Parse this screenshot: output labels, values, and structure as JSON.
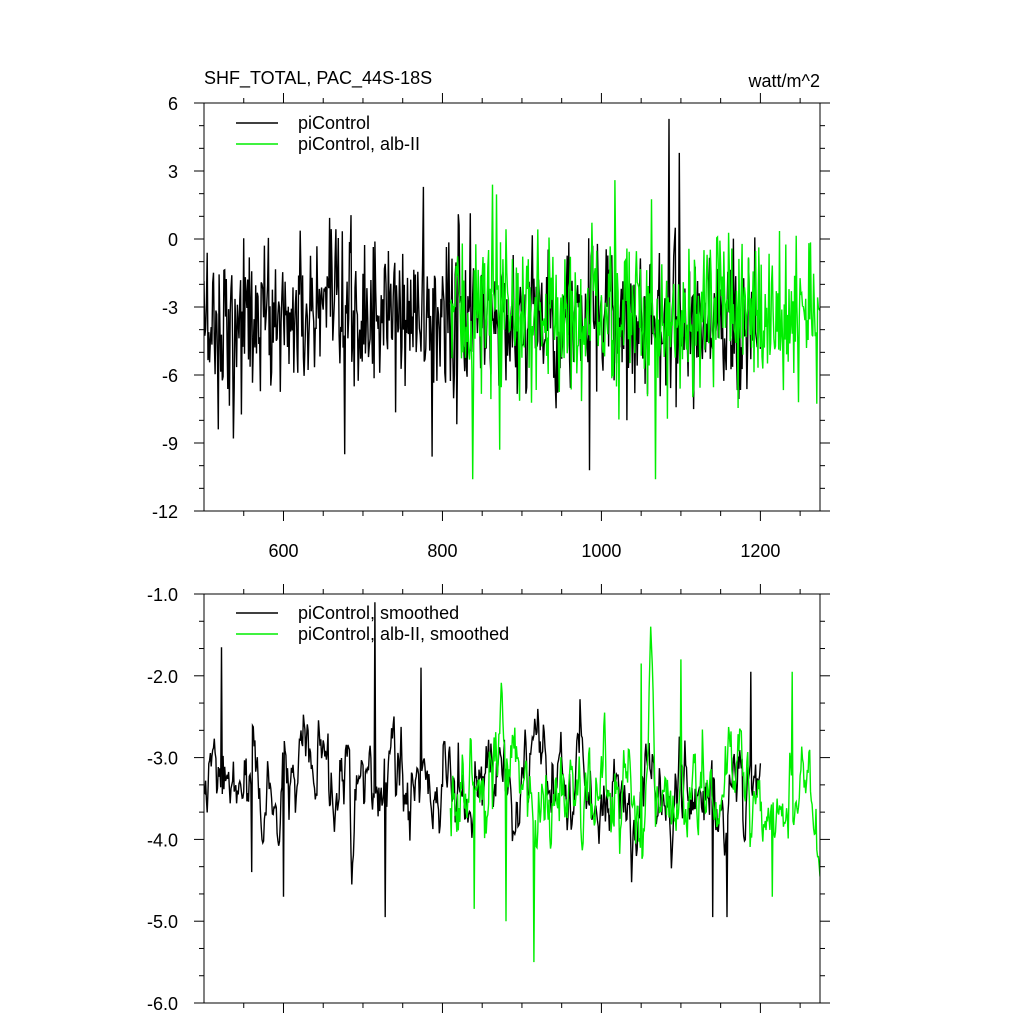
{
  "chart_data": [
    {
      "type": "line",
      "title": "SHF_TOTAL, PAC_44S-18S",
      "units": "watt/m^2",
      "xlim": [
        500,
        1275
      ],
      "ylim": [
        -12,
        6
      ],
      "y_ticks": [
        6,
        3,
        0,
        -3,
        -6,
        -9,
        -12
      ],
      "y_tick_labels": [
        "6",
        "3",
        "0",
        "-3",
        "-6",
        "-9",
        "-12"
      ],
      "x_ticks": [
        600,
        800,
        1000,
        1200
      ],
      "x_tick_labels": [
        "600",
        "800",
        "1000",
        "1200"
      ],
      "grid": false,
      "legend_position": "top-left",
      "series": [
        {
          "name": "piControl",
          "color": "#000000",
          "x_start": 500,
          "x_end": 1200,
          "mean": -3.5,
          "std": 2.0,
          "peaks": [
            [
              1085,
              5.3
            ],
            [
              1098,
              3.8
            ],
            [
              776,
              2.3
            ],
            [
              985,
              -10.2
            ],
            [
              787,
              -9.6
            ],
            [
              677,
              -9.5
            ],
            [
              537,
              -8.8
            ],
            [
              518,
              -8.4
            ]
          ]
        },
        {
          "name": "piControl, alb-II",
          "color": "#00ee00",
          "x_start": 810,
          "x_end": 1275,
          "mean": -3.3,
          "std": 2.0,
          "peaks": [
            [
              863,
              2.4
            ],
            [
              1017,
              2.6
            ],
            [
              838,
              -10.6
            ],
            [
              1068,
              -10.6
            ],
            [
              872,
              -9.3
            ],
            [
              1248,
              -7.2
            ]
          ]
        }
      ]
    },
    {
      "type": "line",
      "xlim": [
        500,
        1275
      ],
      "ylim": [
        -6.0,
        -1.0
      ],
      "y_ticks": [
        -1.0,
        -2.0,
        -3.0,
        -4.0,
        -5.0,
        -6.0
      ],
      "y_tick_labels": [
        "-1.0",
        "-2.0",
        "-3.0",
        "-4.0",
        "-5.0",
        "-6.0"
      ],
      "x_ticks": [
        600,
        800,
        1000,
        1200
      ],
      "grid": false,
      "legend_position": "top-left",
      "series": [
        {
          "name": "piControl, smoothed",
          "color": "#000000",
          "x_start": 500,
          "x_end": 1200,
          "mean": -3.45,
          "std": 0.45,
          "peaks": [
            [
              522,
              -1.65
            ],
            [
              715,
              -1.1
            ],
            [
              773,
              -1.9
            ],
            [
              1188,
              -1.95
            ],
            [
              728,
              -4.95
            ],
            [
              1140,
              -4.95
            ],
            [
              1158,
              -4.95
            ],
            [
              560,
              -4.4
            ],
            [
              600,
              -4.7
            ]
          ]
        },
        {
          "name": "piControl, alb-II, smoothed",
          "color": "#00ee00",
          "x_start": 810,
          "x_end": 1275,
          "mean": -3.45,
          "std": 0.5,
          "peaks": [
            [
              915,
              -5.5
            ],
            [
              1100,
              -1.8
            ],
            [
              1050,
              -1.85
            ],
            [
              1240,
              -1.95
            ],
            [
              880,
              -5.0
            ],
            [
              840,
              -4.85
            ],
            [
              1215,
              -4.7
            ]
          ]
        }
      ]
    }
  ]
}
